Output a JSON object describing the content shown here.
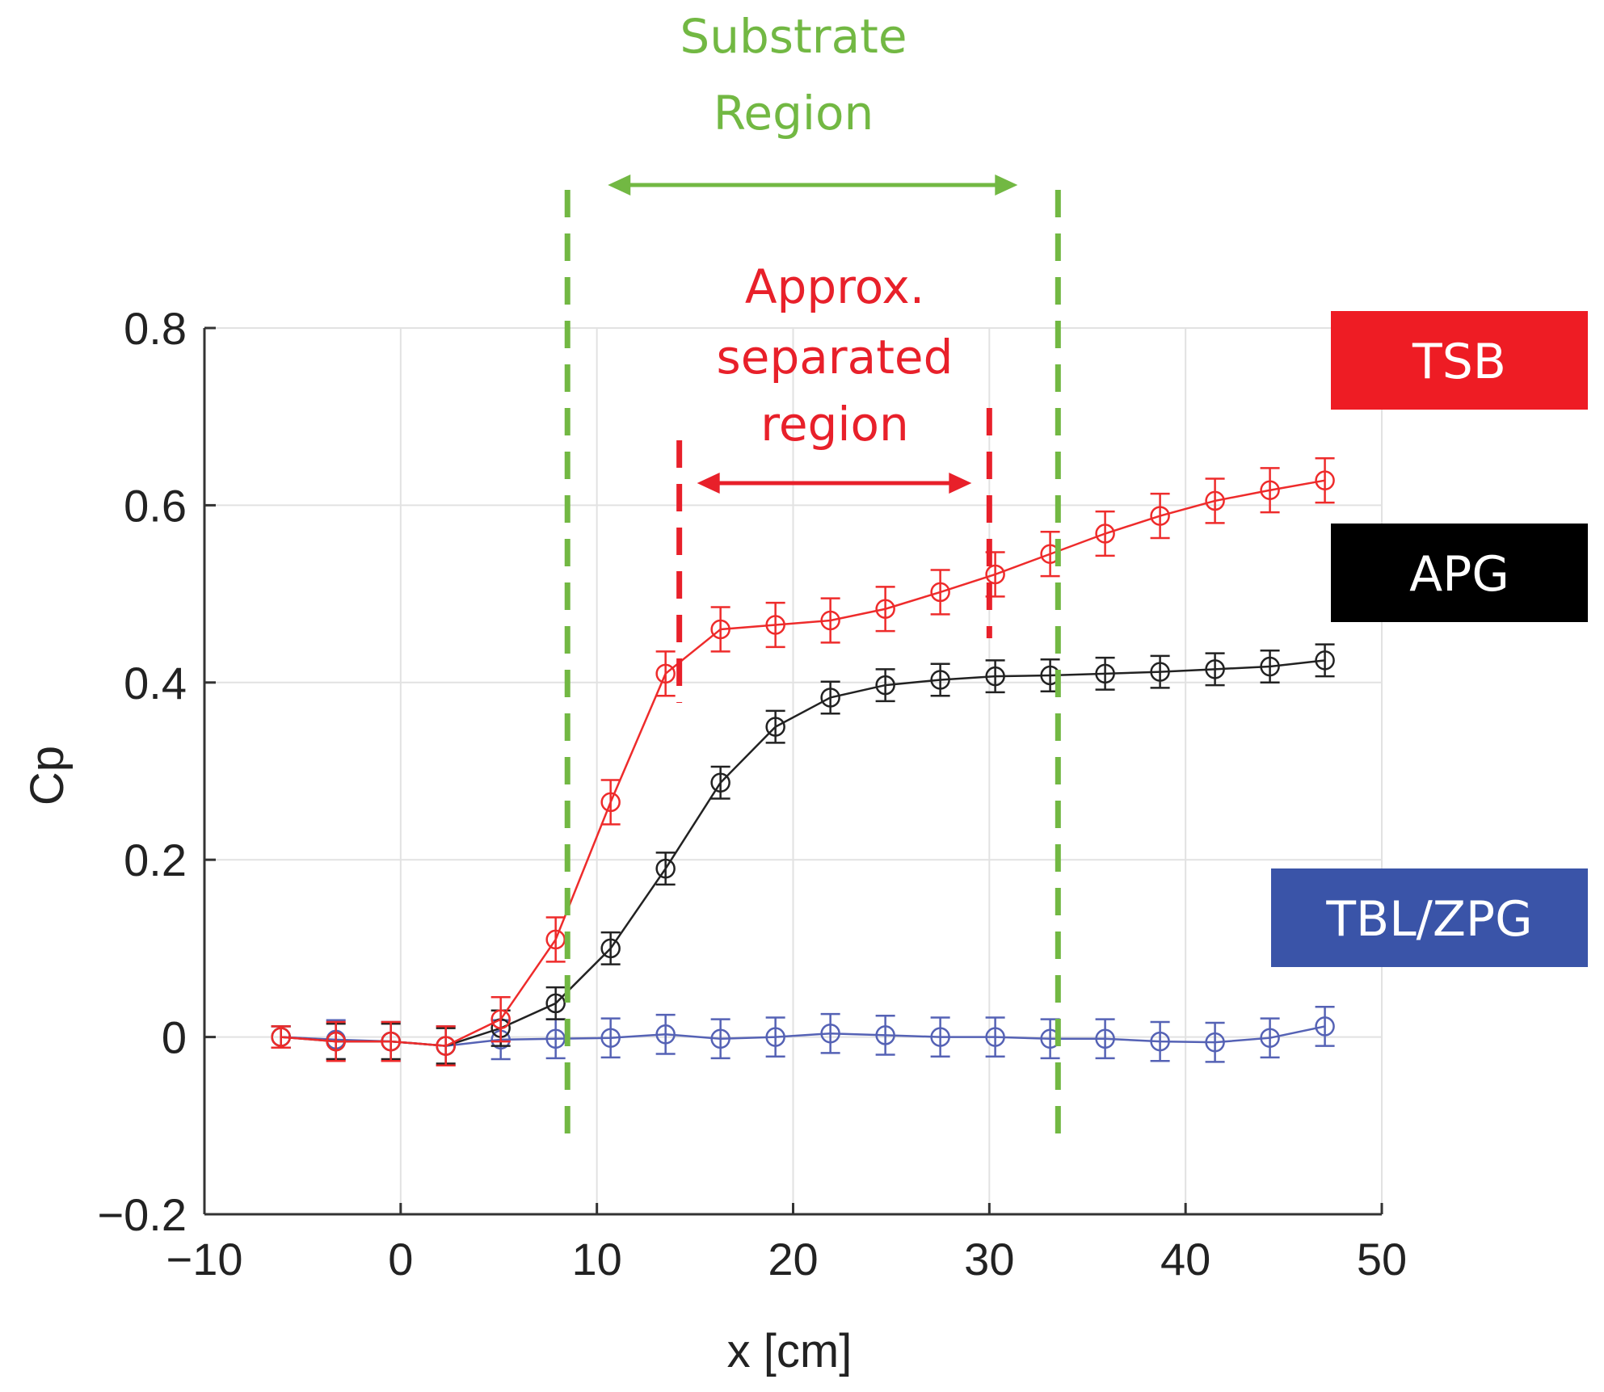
{
  "chart_data": {
    "type": "line",
    "xlabel": "x [cm]",
    "ylabel": "Cp",
    "xlim": [
      -10,
      50
    ],
    "ylim": [
      -0.2,
      0.8
    ],
    "grid": true,
    "xticks": [
      -10,
      0,
      10,
      20,
      30,
      40,
      50
    ],
    "xtick_labels": [
      "−10",
      "0",
      "10",
      "20",
      "30",
      "40",
      "50"
    ],
    "yticks": [
      -0.2,
      0,
      0.2,
      0.4,
      0.6,
      0.8
    ],
    "ytick_labels": [
      "−0.2",
      "0",
      "0.2",
      "0.4",
      "0.6",
      "0.8"
    ],
    "series": [
      {
        "name": "TSB",
        "color": "#ee2b2b",
        "x": [
          -6.1,
          -3.3,
          -0.5,
          2.3,
          5.1,
          7.9,
          10.7,
          13.5,
          16.3,
          19.1,
          21.9,
          24.7,
          27.5,
          30.3,
          33.1,
          35.9,
          38.7,
          41.5,
          44.3,
          47.1
        ],
        "y": [
          0.0,
          -0.005,
          -0.005,
          -0.01,
          0.02,
          0.11,
          0.265,
          0.41,
          0.46,
          0.465,
          0.47,
          0.483,
          0.502,
          0.522,
          0.545,
          0.568,
          0.588,
          0.605,
          0.617,
          0.628
        ],
        "err": [
          0.012,
          0.022,
          0.022,
          0.022,
          0.025,
          0.025,
          0.025,
          0.025,
          0.025,
          0.025,
          0.025,
          0.025,
          0.025,
          0.025,
          0.025,
          0.025,
          0.025,
          0.025,
          0.025,
          0.025
        ]
      },
      {
        "name": "APG",
        "color": "#222222",
        "x": [
          -6.1,
          -3.3,
          -0.5,
          2.3,
          5.1,
          7.9,
          10.7,
          13.5,
          16.3,
          19.1,
          21.9,
          24.7,
          27.5,
          30.3,
          33.1,
          35.9,
          38.7,
          41.5,
          44.3,
          47.1
        ],
        "y": [
          0.0,
          -0.005,
          -0.005,
          -0.01,
          0.01,
          0.038,
          0.1,
          0.19,
          0.287,
          0.35,
          0.383,
          0.397,
          0.403,
          0.407,
          0.408,
          0.41,
          0.412,
          0.415,
          0.418,
          0.425
        ],
        "err": [
          0.012,
          0.02,
          0.02,
          0.02,
          0.02,
          0.018,
          0.018,
          0.018,
          0.018,
          0.018,
          0.018,
          0.018,
          0.018,
          0.018,
          0.018,
          0.018,
          0.018,
          0.018,
          0.018,
          0.018
        ]
      },
      {
        "name": "TBL/ZPG",
        "color": "#5562b5",
        "x": [
          -6.1,
          -3.3,
          -0.5,
          2.3,
          5.1,
          7.9,
          10.7,
          13.5,
          16.3,
          19.1,
          21.9,
          24.7,
          27.5,
          30.3,
          33.1,
          35.9,
          38.7,
          41.5,
          44.3,
          47.1
        ],
        "y": [
          0.0,
          -0.003,
          -0.005,
          -0.01,
          -0.003,
          -0.002,
          -0.001,
          0.003,
          -0.002,
          0.0,
          0.004,
          0.002,
          0.0,
          0.0,
          -0.002,
          -0.002,
          -0.005,
          -0.006,
          -0.001,
          0.012
        ],
        "err": [
          0.012,
          0.022,
          0.022,
          0.022,
          0.022,
          0.022,
          0.022,
          0.022,
          0.022,
          0.022,
          0.022,
          0.022,
          0.022,
          0.022,
          0.022,
          0.022,
          0.022,
          0.022,
          0.022,
          0.022
        ]
      }
    ],
    "annotations": {
      "substrate_region": {
        "line1": "Substrate",
        "line2": "Region",
        "color": "#72b843",
        "x_start": 8.5,
        "x_end": 33.5
      },
      "separated_region": {
        "line1": "Approx.",
        "line2": "separated",
        "line3": "region",
        "color": "#e8202a",
        "x_start": 14.2,
        "x_end": 30.0
      }
    },
    "legend": [
      {
        "label": "TSB",
        "color": "#ee1c24"
      },
      {
        "label": "APG",
        "color": "#000000"
      },
      {
        "label": "TBL/ZPG",
        "color": "#3a54a8"
      }
    ]
  }
}
